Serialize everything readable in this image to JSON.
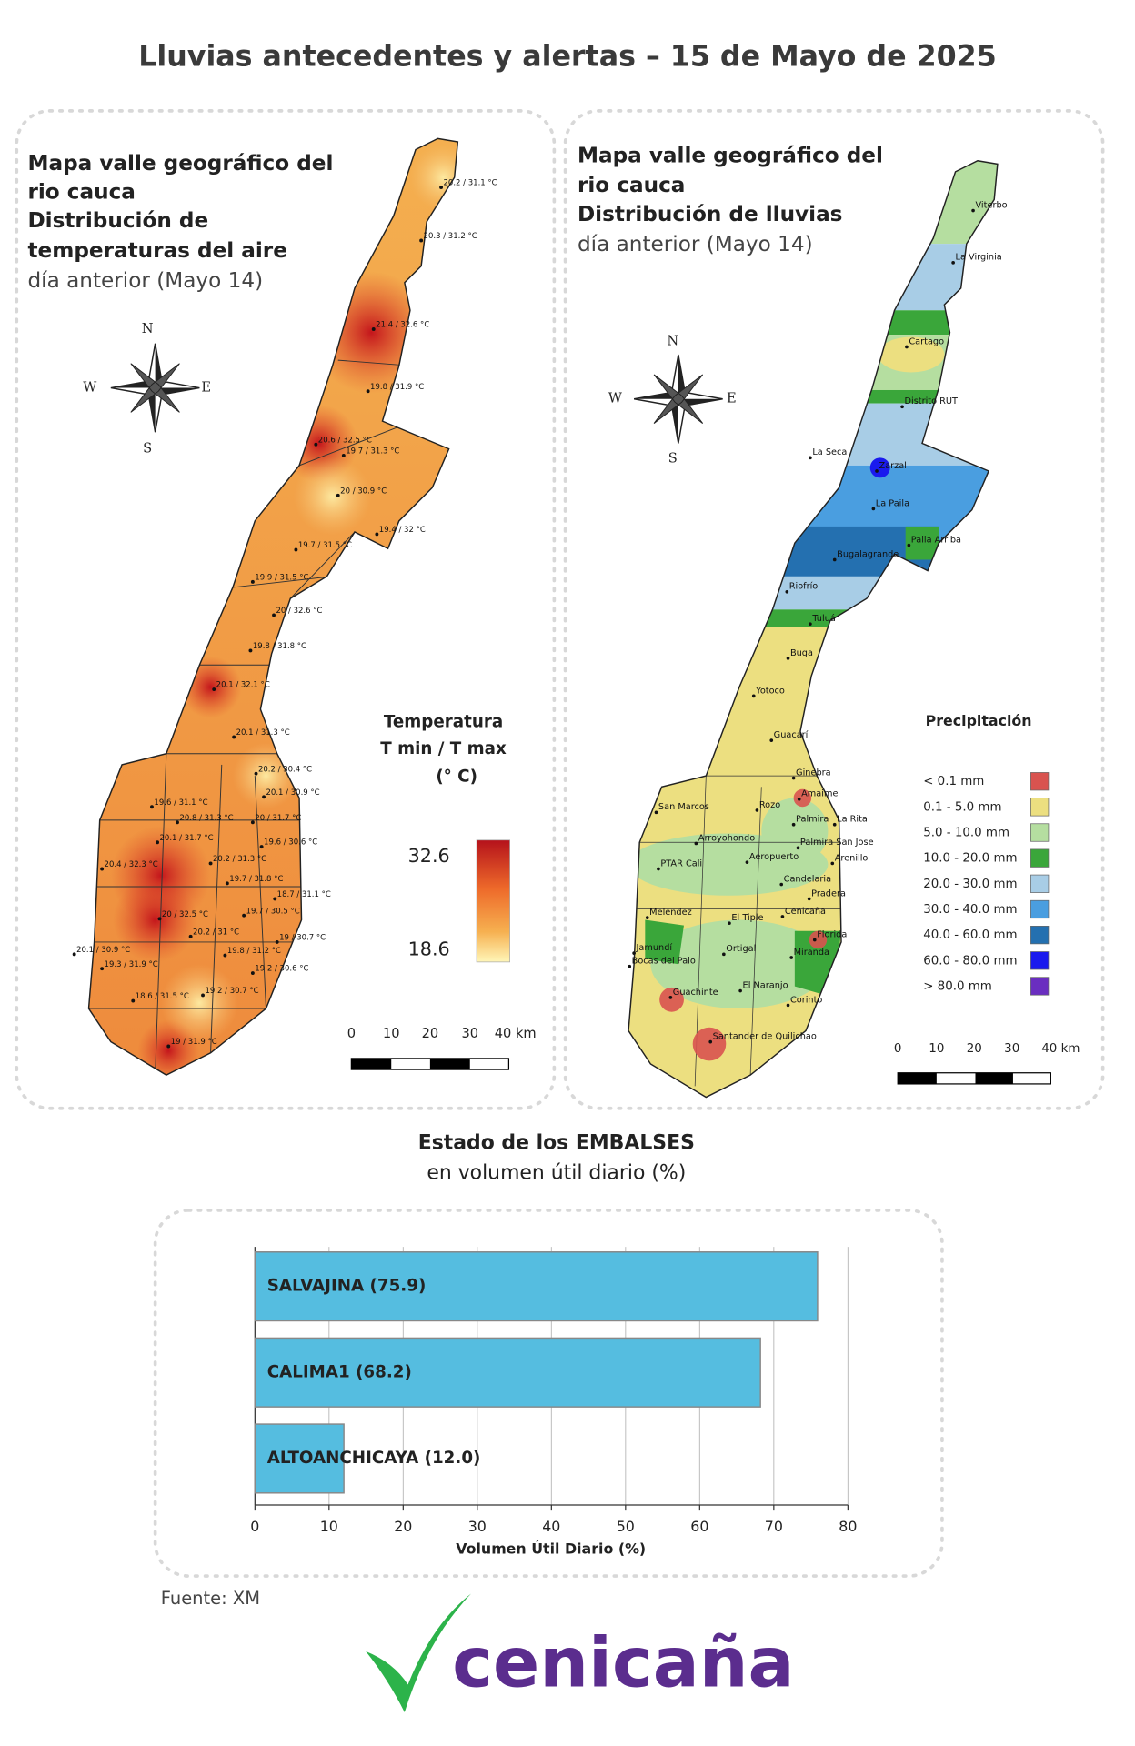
{
  "header": {
    "title": "Lluvias antecedentes y alertas – 15 de Mayo de 2025"
  },
  "temperature_map": {
    "title_lines": [
      "Mapa valle geográfico del",
      "rio cauca",
      "Distribución de",
      "temperaturas del aire"
    ],
    "subtitle": "día anterior (Mayo 14)",
    "compass": {
      "n": "N",
      "s": "S",
      "w": "W",
      "e": "E"
    },
    "legend": {
      "title_lines": [
        "Temperatura",
        "T min / T max",
        "(° C)"
      ],
      "max": 32.6,
      "min": 18.6
    },
    "scale_labels": [
      "0",
      "10",
      "20",
      "30",
      "40 km"
    ],
    "stations": [
      "20.2 / 31.1 °C",
      "20.3 / 31.2 °C",
      "21.4 / 32.6 °C",
      "19.8 / 31.9 °C",
      "20.6 / 32.5 °C",
      "19.7 / 31.3 °C",
      "20 / 30.9 °C",
      "19.4 / 32 °C",
      "19.7 / 31.5 °C",
      "19.9 / 31.5 °C",
      "20 / 32.6 °C",
      "19.8 / 31.8 °C",
      "20.1 / 32.1 °C",
      "20.1 / 31.3 °C",
      "20.2 / 30.4 °C",
      "20.1 / 30.9 °C",
      "19.6 / 31.1 °C",
      "20.8 / 31.3 °C",
      "20 / 31.7 °C",
      "20.1 / 31.7 °C",
      "19.6 / 30.6 °C",
      "20.2 / 31.3 °C",
      "20.4 / 32.3 °C",
      "19.7 / 31.8 °C",
      "18.7 / 31.1 °C",
      "20 / 32.5 °C",
      "19.7 / 30.5 °C",
      "20.2 / 31 °C",
      "19 / 30.7 °C",
      "20.1 / 30.9 °C",
      "19.8 / 31.2 °C",
      "19.3 / 31.9 °C",
      "19.2 / 30.6 °C",
      "18.6 / 31.5 °C",
      "19.2 / 30.7 °C",
      "19 / 31.9 °C"
    ]
  },
  "rainfall_map": {
    "title_lines": [
      "Mapa valle geográfico del",
      "rio cauca"
    ],
    "title_bold": "Distribución de lluvias",
    "subtitle": "día anterior (Mayo 14)",
    "compass": {
      "n": "N",
      "s": "S",
      "w": "W",
      "e": "E"
    },
    "legend": {
      "title": "Precipitación",
      "items": [
        {
          "label": "< 0.1 mm",
          "color": "#d9534f"
        },
        {
          "label": "0.1 - 5.0 mm",
          "color": "#ecdf80"
        },
        {
          "label": "5.0 - 10.0 mm",
          "color": "#b5dea0"
        },
        {
          "label": "10.0 - 20.0 mm",
          "color": "#3aa63a"
        },
        {
          "label": "20.0 - 30.0 mm",
          "color": "#a8cde6"
        },
        {
          "label": "30.0 - 40.0 mm",
          "color": "#4a9ee0"
        },
        {
          "label": "40.0 - 60.0 mm",
          "color": "#2470b0"
        },
        {
          "label": "60.0 - 80.0 mm",
          "color": "#1a1aee"
        },
        {
          "label": "> 80.0 mm",
          "color": "#6a2ec0"
        }
      ]
    },
    "scale_labels": [
      "0",
      "10",
      "20",
      "30",
      "40 km"
    ],
    "towns": [
      "Viterbo",
      "La Virginia",
      "Cartago",
      "Distrito RUT",
      "La Seca",
      "Zarzal",
      "La Paila",
      "Paila Arriba",
      "Bugalagrande",
      "Riofrío",
      "Tuluá",
      "Buga",
      "Yotoco",
      "Guacarí",
      "Ginebra",
      "Amaime",
      "San Marcos",
      "Rozo",
      "Palmira",
      "La Rita",
      "Arroyohondo",
      "Palmira San Jose",
      "Aeropuerto",
      "Arenillo",
      "PTAR Cali",
      "Candelaria",
      "Pradera",
      "Cenicaña",
      "Melendez",
      "El Tiple",
      "Florida",
      "Jamundí",
      "Bocas del Palo",
      "Ortigal",
      "Miranda",
      "El Naranjo",
      "Guachinte",
      "Corinto",
      "Santander de Quilichao"
    ]
  },
  "chart_data": {
    "type": "bar",
    "orientation": "horizontal",
    "title": "Estado de los EMBALSES",
    "subtitle": "en volumen útil diario (%)",
    "categories": [
      "SALVAJINA (75.9)",
      "CALIMA1 (68.2)",
      "ALTOANCHICAYA (12.0)"
    ],
    "values": [
      75.9,
      68.2,
      12.0
    ],
    "color": "#55bde0",
    "xlim": [
      0,
      80
    ],
    "xticks": [
      0,
      10,
      20,
      30,
      40,
      50,
      60,
      70,
      80
    ],
    "xlabel": "Volumen Útil Diario (%)",
    "grid": true
  },
  "footer": {
    "source": "Fuente: XM",
    "logo": "cenicaña"
  }
}
